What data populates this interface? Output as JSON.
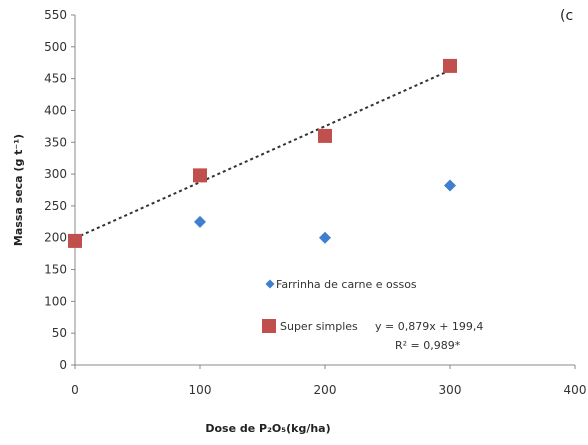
{
  "chart_data": {
    "type": "scatter",
    "panel_label": "(c",
    "xlabel": "Dose de P₂O₅(kg/ha)",
    "ylabel": "Massa seca (g t⁻¹)",
    "xlim": [
      0,
      400
    ],
    "ylim": [
      0,
      550
    ],
    "x_ticks": [
      "0",
      "100",
      "200",
      "300",
      "400"
    ],
    "y_ticks": [
      "0",
      "50",
      "100",
      "150",
      "200",
      "250",
      "300",
      "350",
      "400",
      "450",
      "500",
      "550"
    ],
    "grid": false,
    "legend_position": "bottom-center",
    "series": [
      {
        "name": "Farrinha de carne e ossos",
        "marker": "diamond",
        "color": "#3f7fd0",
        "x": [
          100,
          200,
          300
        ],
        "y": [
          225,
          200,
          282
        ]
      },
      {
        "name": "Super simples",
        "marker": "square",
        "color": "#c0504d",
        "x": [
          0,
          100,
          200,
          300
        ],
        "y": [
          195,
          298,
          360,
          470
        ]
      }
    ],
    "trendline": {
      "series": "Super simples",
      "slope": 0.879,
      "intercept": 199.4,
      "x_range": [
        0,
        300
      ],
      "style": "dotted",
      "color": "#333333"
    },
    "annotations": {
      "equation": "y = 0,879x + 199,4",
      "r2": "R² = 0,989*"
    }
  }
}
